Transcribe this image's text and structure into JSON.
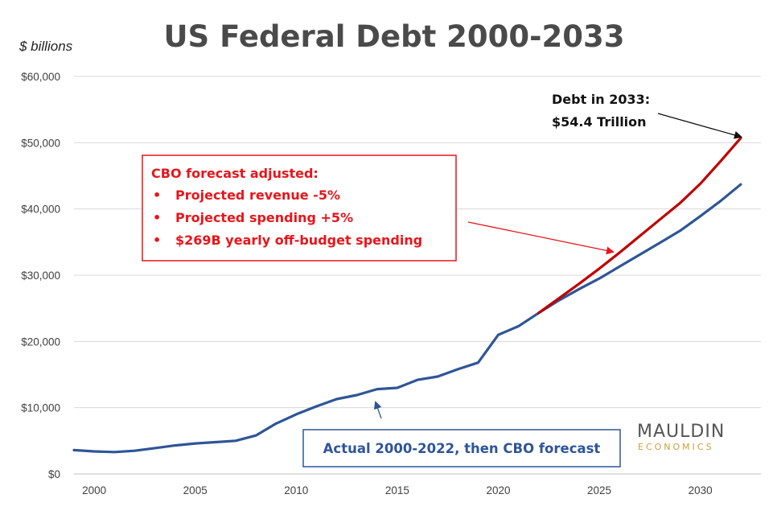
{
  "chart_data": {
    "type": "line",
    "title": "US Federal Debt 2000-2033",
    "ylabel": "$ billions",
    "xlim": [
      1999,
      2033
    ],
    "ylim": [
      0,
      60000
    ],
    "y_ticks": [
      0,
      10000,
      20000,
      30000,
      40000,
      50000,
      60000
    ],
    "y_tick_labels": [
      "$0",
      "$10,000",
      "$20,000",
      "$30,000",
      "$40,000",
      "$50,000",
      "$60,000"
    ],
    "x_ticks": [
      2000,
      2005,
      2010,
      2015,
      2020,
      2025,
      2030
    ],
    "x_tick_labels": [
      "2000",
      "2005",
      "2010",
      "2015",
      "2020",
      "2025",
      "2030"
    ],
    "grid": "horizontal",
    "series": [
      {
        "color": "#2f5597",
        "x": [
          1999,
          2000,
          2001,
          2002,
          2003,
          2004,
          2005,
          2006,
          2007,
          2008,
          2009,
          2010,
          2011,
          2012,
          2013,
          2014,
          2015,
          2016,
          2017,
          2018,
          2019,
          2020,
          2021,
          2022,
          2023,
          2024,
          2025,
          2026,
          2027,
          2028,
          2029,
          2030,
          2031,
          2032
        ],
        "values": [
          3600,
          3400,
          3300,
          3500,
          3900,
          4300,
          4600,
          4800,
          5000,
          5800,
          7600,
          9000,
          10200,
          11300,
          11900,
          12800,
          13000,
          14200,
          14700,
          15800,
          16800,
          21000,
          22300,
          24300,
          26200,
          27900,
          29500,
          31300,
          33100,
          34900,
          36700,
          38900,
          41200,
          43700
        ]
      },
      {
        "color": "#c00000",
        "x": [
          2022,
          2023,
          2024,
          2025,
          2026,
          2027,
          2028,
          2029,
          2030,
          2031,
          2032
        ],
        "values": [
          24300,
          26500,
          28700,
          31000,
          33400,
          35900,
          38400,
          40900,
          43800,
          47200,
          50700
        ]
      }
    ],
    "annotations": {
      "forecast_box": {
        "heading": "CBO forecast adjusted:",
        "bullets": [
          "Projected revenue -5%",
          "Projected spending +5%",
          "$269B yearly off-budget spending"
        ]
      },
      "debt_2033_line1": "Debt in 2033:",
      "debt_2033_line2": "$54.4 Trillion",
      "actual_label": "Actual 2000-2022, then CBO forecast"
    }
  },
  "logo": {
    "main": "MAULDIN",
    "sub": "ECONOMICS"
  },
  "colors": {
    "annotation_red": "#e8151b",
    "annotation_blue": "#2f5597",
    "grid": "#d9d9d9"
  }
}
